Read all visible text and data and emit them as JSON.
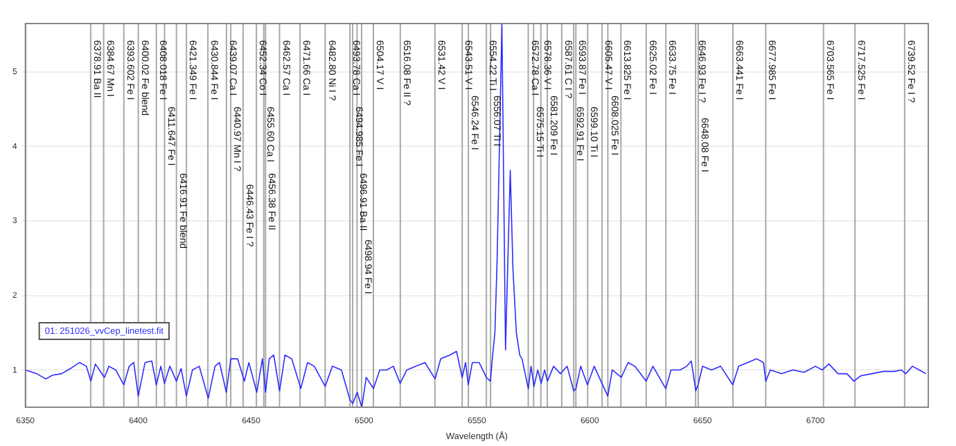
{
  "chart_data": {
    "type": "line",
    "xlabel": "Wavelength (Å)",
    "xlim": [
      6350,
      6750
    ],
    "xticks": [
      6350,
      6400,
      6450,
      6500,
      6550,
      6600,
      6650,
      6700
    ],
    "ylim": [
      0.5,
      5.65
    ],
    "yticks": [
      1,
      2,
      3,
      4,
      5
    ],
    "grid": "y",
    "legend": "left",
    "x": [
      6350,
      6355,
      6359,
      6362,
      6366,
      6370,
      6374,
      6377,
      6379,
      6381,
      6385,
      6387,
      6390,
      6393.6,
      6396,
      6398,
      6400,
      6403,
      6406,
      6408,
      6410,
      6411.6,
      6414,
      6416.9,
      6419,
      6421.3,
      6424,
      6427,
      6431,
      6434,
      6436,
      6439,
      6441,
      6444,
      6447,
      6449,
      6452.5,
      6455,
      6456.4,
      6458,
      6460,
      6462.6,
      6465,
      6468,
      6472,
      6475,
      6478,
      6482.8,
      6486,
      6490,
      6493.8,
      6495,
      6497,
      6499,
      6501,
      6504.2,
      6507,
      6510,
      6513,
      6516,
      6519,
      6523,
      6527,
      6531.5,
      6534,
      6538,
      6541,
      6543.5,
      6545,
      6546.2,
      6548,
      6551,
      6554.2,
      6556,
      6557,
      6558,
      6559,
      6561.1,
      6562.7,
      6564.8,
      6566,
      6567.5,
      6569,
      6570,
      6572.8,
      6574,
      6575.3,
      6577,
      6578.5,
      6580,
      6581.3,
      6584,
      6587,
      6590,
      6592.9,
      6593.9,
      6596,
      6599,
      6602,
      6605,
      6608,
      6610,
      6614,
      6617,
      6620,
      6625,
      6628,
      6633.7,
      6636,
      6640,
      6643,
      6645,
      6647,
      6648,
      6650,
      6654,
      6658,
      6663.4,
      6666,
      6670,
      6674,
      6677,
      6678,
      6680,
      6685,
      6690,
      6695,
      6700,
      6703,
      6706,
      6710,
      6714,
      6717,
      6720,
      6725,
      6730,
      6735,
      6738,
      6740,
      6743,
      6746,
      6749
    ],
    "series": [
      {
        "name": "01: 251026_vvCep_linetest.fit",
        "color": "#2b2bff",
        "values": [
          1.0,
          0.95,
          0.88,
          0.93,
          0.95,
          1.02,
          1.1,
          1.05,
          0.85,
          1.08,
          0.9,
          1.05,
          1.0,
          0.8,
          1.05,
          1.1,
          0.65,
          1.1,
          1.12,
          0.8,
          1.05,
          0.82,
          1.05,
          0.85,
          1.02,
          0.65,
          1.0,
          1.05,
          0.62,
          1.05,
          1.1,
          0.7,
          1.15,
          1.15,
          0.85,
          1.1,
          0.7,
          1.15,
          0.7,
          1.15,
          1.2,
          0.72,
          1.2,
          1.15,
          0.75,
          1.1,
          1.05,
          0.78,
          1.05,
          1.0,
          0.6,
          0.55,
          0.7,
          0.5,
          0.9,
          0.75,
          1.0,
          1.0,
          1.05,
          0.82,
          1.0,
          1.05,
          1.1,
          0.88,
          1.15,
          1.2,
          1.25,
          0.9,
          1.1,
          0.8,
          1.1,
          1.1,
          0.9,
          0.85,
          1.2,
          1.5,
          2.5,
          5.65,
          1.27,
          3.68,
          2.35,
          1.5,
          1.2,
          1.15,
          0.75,
          1.05,
          0.78,
          1.0,
          0.82,
          1.0,
          0.85,
          1.05,
          0.95,
          1.05,
          0.72,
          0.75,
          1.05,
          0.8,
          1.05,
          0.85,
          0.65,
          1.0,
          0.9,
          1.1,
          1.05,
          0.85,
          1.05,
          0.75,
          1.0,
          1.0,
          1.05,
          1.12,
          0.72,
          0.8,
          1.05,
          1.0,
          1.05,
          0.8,
          1.05,
          1.1,
          1.15,
          1.1,
          0.85,
          1.0,
          0.95,
          1.0,
          0.97,
          1.05,
          1.0,
          1.08,
          0.95,
          0.95,
          0.85,
          0.92,
          0.95,
          0.98,
          0.98,
          1.0,
          0.95,
          1.05,
          1.0,
          0.95
        ]
      }
    ],
    "ref_lines": [
      {
        "axis": "x",
        "value": 6378.91,
        "label": "6378.91 Ba II"
      },
      {
        "axis": "x",
        "value": 6384.67,
        "label": "6384.67 Mn I"
      },
      {
        "axis": "x",
        "value": 6393.602,
        "label": "6393.602 Fe I"
      },
      {
        "axis": "x",
        "value": 6400.02,
        "label": "6400.02 Fe blend"
      },
      {
        "axis": "x",
        "value": 6408.018,
        "label": "6408.018 Fe I"
      },
      {
        "axis": "x",
        "value": 6411.647,
        "label": "6411.647 Fe I"
      },
      {
        "axis": "x",
        "value": 6416.91,
        "label": "6416.91 Fe blend"
      },
      {
        "axis": "x",
        "value": 6421.349,
        "label": "6421.349 Fe I"
      },
      {
        "axis": "x",
        "value": 6430.844,
        "label": "6430.844 Fe I"
      },
      {
        "axis": "x",
        "value": 6439.07,
        "label": "6439.07 Ca I"
      },
      {
        "axis": "x",
        "value": 6440.97,
        "label": "6440.97 Mn I ?"
      },
      {
        "axis": "x",
        "value": 6446.43,
        "label": "6446.43 Fe I ?"
      },
      {
        "axis": "x",
        "value": 6452.34,
        "label": "6452.34 Co I"
      },
      {
        "axis": "x",
        "value": 6455.6,
        "label": "6455.60 Ca I"
      },
      {
        "axis": "x",
        "value": 6456.38,
        "label": "6456.38 Fe II"
      },
      {
        "axis": "x",
        "value": 6462.57,
        "label": "6462.57 Ca I"
      },
      {
        "axis": "x",
        "value": 6471.66,
        "label": "6471.66 Ca I"
      },
      {
        "axis": "x",
        "value": 6482.8,
        "label": "6482.80 Ni I ?"
      },
      {
        "axis": "x",
        "value": 6493.78,
        "label": "6493.78 Ca I"
      },
      {
        "axis": "x",
        "value": 6494.985,
        "label": "6494.985 Fe I"
      },
      {
        "axis": "x",
        "value": 6496.91,
        "label": "6496.91 Ba II"
      },
      {
        "axis": "x",
        "value": 6498.94,
        "label": "6498.94 Fe I"
      },
      {
        "axis": "x",
        "value": 6504.17,
        "label": "6504.17 V I"
      },
      {
        "axis": "x",
        "value": 6516.08,
        "label": "6516.08 Fe II ?"
      },
      {
        "axis": "x",
        "value": 6531.42,
        "label": "6531.42 V I"
      },
      {
        "axis": "x",
        "value": 6543.51,
        "label": "6543.51 V I"
      },
      {
        "axis": "x",
        "value": 6546.24,
        "label": "6546.24 Fe I"
      },
      {
        "axis": "x",
        "value": 6554.22,
        "label": "6554.22 Ti I"
      },
      {
        "axis": "x",
        "value": 6556.07,
        "label": "6556.07 Ti I"
      },
      {
        "axis": "x",
        "value": 6572.78,
        "label": "6572.78 Ca I"
      },
      {
        "axis": "x",
        "value": 6575.15,
        "label": "6575.15 Ti I"
      },
      {
        "axis": "x",
        "value": 6578.36,
        "label": "6578.36 V I"
      },
      {
        "axis": "x",
        "value": 6581.209,
        "label": "6581.209 Fe I"
      },
      {
        "axis": "x",
        "value": 6587.61,
        "label": "6587.61 C I ?"
      },
      {
        "axis": "x",
        "value": 6592.91,
        "label": "6592.91 Fe I"
      },
      {
        "axis": "x",
        "value": 6593.87,
        "label": "6593.87 Fe I"
      },
      {
        "axis": "x",
        "value": 6599.1,
        "label": "6599.10 Ti I"
      },
      {
        "axis": "x",
        "value": 6605.47,
        "label": "6605.47 V I"
      },
      {
        "axis": "x",
        "value": 6608.025,
        "label": "6608.025 Fe I"
      },
      {
        "axis": "x",
        "value": 6613.825,
        "label": "6613.825 Fe I"
      },
      {
        "axis": "x",
        "value": 6625.02,
        "label": "6625.02 Fe I"
      },
      {
        "axis": "x",
        "value": 6633.75,
        "label": "6633.75 Fe I"
      },
      {
        "axis": "x",
        "value": 6646.93,
        "label": "6646.93 Fe I ?"
      },
      {
        "axis": "x",
        "value": 6648.08,
        "label": "6648.08 Fe I"
      },
      {
        "axis": "x",
        "value": 6663.441,
        "label": "6663.441 Fe I"
      },
      {
        "axis": "x",
        "value": 6677.985,
        "label": "6677.985 Fe I"
      },
      {
        "axis": "x",
        "value": 6703.565,
        "label": "6703.565 Fe I"
      },
      {
        "axis": "x",
        "value": 6717.525,
        "label": "6717.525 Fe I"
      },
      {
        "axis": "x",
        "value": 6739.52,
        "label": "6739.52 Fe I ?"
      }
    ]
  }
}
